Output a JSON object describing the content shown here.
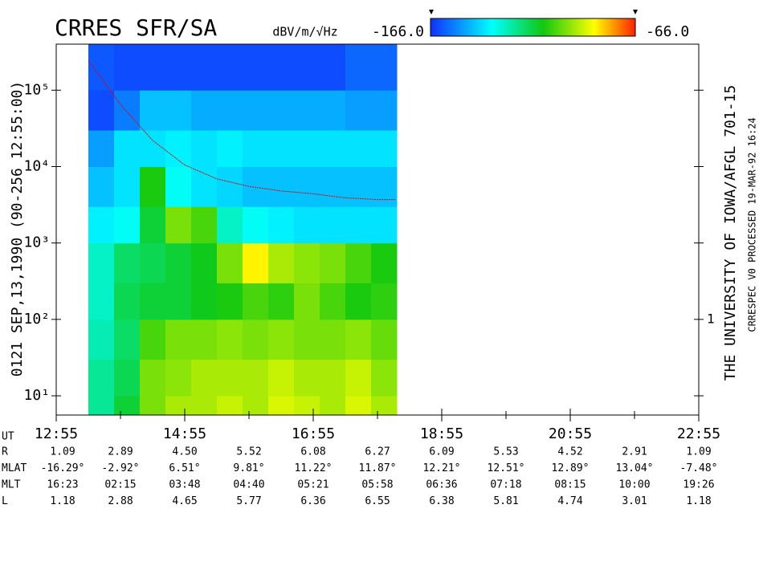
{
  "chart_data": {
    "type": "heatmap",
    "title": "CRRES SFR/SA",
    "left_label": "0121  SEP,13,1990  (90-256 12:55:00)",
    "right_label": "THE UNIVERSITY OF IOWA/AFGL 701-15",
    "processing_label": "CRRESPEC V0  PROCESSED 19-MAR-92  16:24",
    "colorbar": {
      "label": "dBV/m/√Hz",
      "min": {
        "value": -166,
        "label": "-166.0"
      },
      "max": {
        "value": -66,
        "label": "-66.0"
      }
    },
    "log_y": true,
    "xlim": [
      775,
      1375
    ],
    "xticks": [
      {
        "value": 775,
        "label": "12:55"
      },
      {
        "value": 895,
        "label": "14:55"
      },
      {
        "value": 1015,
        "label": "16:55"
      },
      {
        "value": 1135,
        "label": "18:55"
      },
      {
        "value": 1255,
        "label": "20:55"
      },
      {
        "value": 1375,
        "label": "22:55"
      }
    ],
    "xminorticks": [
      835,
      955,
      1075,
      1195,
      1315
    ],
    "ylim": [
      5.6,
      400000
    ],
    "yticks": [
      {
        "value": 10,
        "label": "10¹"
      },
      {
        "value": 100,
        "label": "10²"
      },
      {
        "value": 1000,
        "label": "10³"
      },
      {
        "value": 10000,
        "label": "10⁴"
      },
      {
        "value": 100000,
        "label": "10⁵"
      }
    ],
    "y2ticks": [
      {
        "value": 100,
        "label": "1"
      }
    ],
    "x_edges": [
      805,
      829,
      853,
      877,
      901,
      925,
      949,
      973,
      997,
      1021,
      1045,
      1069,
      1093
    ],
    "y_edges": [
      5.6,
      10,
      30,
      100,
      300,
      1000,
      3000,
      10000,
      30000,
      100000,
      400000
    ],
    "values": [
      [
        -125,
        -115,
        -100,
        -95,
        -95,
        -92,
        -95,
        -90,
        -92,
        -95,
        -90,
        -95
      ],
      [
        -125,
        -118,
        -100,
        -98,
        -95,
        -95,
        -95,
        -92,
        -95,
        -95,
        -92,
        -98
      ],
      [
        -128,
        -120,
        -105,
        -100,
        -100,
        -98,
        -100,
        -98,
        -100,
        -100,
        -98,
        -102
      ],
      [
        -130,
        -118,
        -115,
        -115,
        -112,
        -110,
        -105,
        -108,
        -100,
        -105,
        -110,
        -108
      ],
      [
        -130,
        -120,
        -118,
        -115,
        -112,
        -100,
        -85,
        -95,
        -98,
        -100,
        -105,
        -110
      ],
      [
        -138,
        -135,
        -115,
        -100,
        -105,
        -130,
        -135,
        -138,
        -140,
        -140,
        -140,
        -140
      ],
      [
        -145,
        -140,
        -110,
        -135,
        -140,
        -142,
        -145,
        -145,
        -145,
        -145,
        -145,
        -145
      ],
      [
        -150,
        -140,
        -140,
        -138,
        -140,
        -138,
        -140,
        -140,
        -140,
        -140,
        -140,
        -140
      ],
      [
        -162,
        -155,
        -145,
        -145,
        -148,
        -148,
        -148,
        -148,
        -148,
        -148,
        -150,
        -150
      ],
      [
        -160,
        -162,
        -162,
        -162,
        -162,
        -162,
        -162,
        -162,
        -162,
        -162,
        -158,
        -158
      ]
    ],
    "line": {
      "color": "#e00000",
      "x": [
        805,
        835,
        865,
        895,
        925,
        955,
        985,
        1015,
        1045,
        1075,
        1092
      ],
      "values": [
        245000,
        65000,
        22000,
        10500,
        6900,
        5500,
        4800,
        4400,
        3900,
        3700,
        3700
      ]
    },
    "ephemeris": {
      "x_label": "UT",
      "rows": [
        {
          "label": "R",
          "values": [
            "1.09",
            "2.89",
            "4.50",
            "5.52",
            "6.08",
            "6.27",
            "6.09",
            "5.53",
            "4.52",
            "2.91",
            "1.09"
          ]
        },
        {
          "label": "MLAT",
          "values": [
            "-16.29°",
            "-2.92°",
            "6.51°",
            "9.81°",
            "11.22°",
            "11.87°",
            "12.21°",
            "12.51°",
            "12.89°",
            "13.04°",
            "-7.48°"
          ]
        },
        {
          "label": "MLT",
          "values": [
            "16:23",
            "02:15",
            "03:48",
            "04:40",
            "05:21",
            "05:58",
            "06:36",
            "07:18",
            "08:15",
            "10:00",
            "19:26"
          ]
        },
        {
          "label": "L",
          "values": [
            "1.18",
            "2.88",
            "4.65",
            "5.77",
            "6.36",
            "6.55",
            "6.38",
            "5.81",
            "4.74",
            "3.01",
            "1.18"
          ]
        }
      ]
    }
  }
}
